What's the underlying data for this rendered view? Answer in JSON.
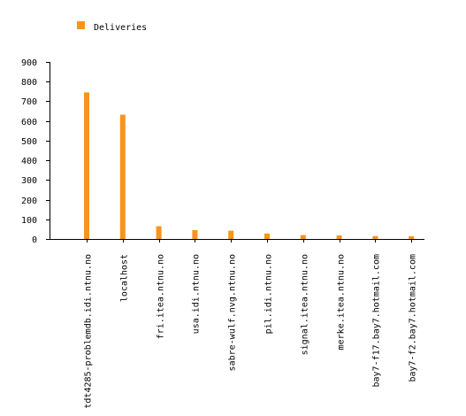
{
  "chart_data": {
    "type": "bar",
    "legend": {
      "label": "Deliveries",
      "position": "top-left"
    },
    "series": [
      {
        "name": "Deliveries",
        "color": "#f7941d",
        "values": [
          745,
          632,
          65,
          45,
          42,
          28,
          20,
          18,
          15,
          14
        ]
      }
    ],
    "categories": [
      "tdt4285-problemdb.idi.ntnu.no",
      "localhost",
      "fri.itea.ntnu.no",
      "usa.idi.ntnu.no",
      "sabre-wulf.nvg.ntnu.no",
      "pil.idi.ntnu.no",
      "signal.itea.ntnu.no",
      "merke.itea.ntnu.no",
      "bay7-f17.bay7.hotmail.com",
      "bay7-f2.bay7.hotmail.com"
    ],
    "yticks": [
      "0",
      "100",
      "200",
      "300",
      "400",
      "500",
      "600",
      "700",
      "800",
      "900"
    ],
    "ylim": [
      0,
      900
    ],
    "grid": false
  }
}
